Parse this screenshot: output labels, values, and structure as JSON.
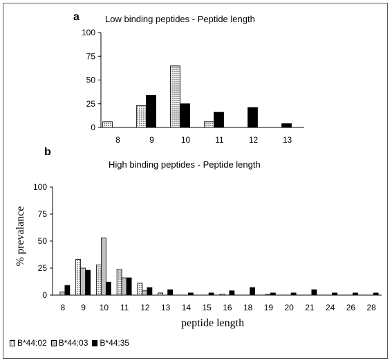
{
  "chart_data": [
    {
      "panel": "a",
      "type": "bar",
      "title": "Low binding peptides - Peptide length",
      "categories": [
        "8",
        "9",
        "10",
        "11",
        "12",
        "13"
      ],
      "ylim": [
        0,
        100
      ],
      "yticks": [
        0,
        25,
        50,
        75,
        100
      ],
      "series": [
        {
          "name": "B*44:02",
          "values": [
            6,
            23,
            65,
            6,
            0,
            0
          ]
        },
        {
          "name": "B*44:03",
          "values": [
            0,
            0,
            0,
            0,
            0,
            0
          ]
        },
        {
          "name": "B*44:35",
          "values": [
            0,
            34,
            25,
            16,
            21,
            4
          ]
        }
      ]
    },
    {
      "panel": "b",
      "type": "bar",
      "title": "High binding peptides - Peptide length",
      "ylabel": "% prevalance",
      "xlabel": "peptide length",
      "categories": [
        "8",
        "9",
        "10",
        "11",
        "12",
        "13",
        "14",
        "15",
        "16",
        "18",
        "19",
        "20",
        "21",
        "24",
        "26",
        "28"
      ],
      "ylim": [
        0,
        100
      ],
      "yticks": [
        0,
        25,
        50,
        75,
        100
      ],
      "series": [
        {
          "name": "B*44:02",
          "values": [
            0,
            33,
            28,
            24,
            11,
            2,
            0,
            0,
            1,
            0,
            0,
            0,
            0,
            0,
            0,
            0
          ]
        },
        {
          "name": "B*44:03",
          "values": [
            3,
            25,
            53,
            16,
            4,
            0,
            0,
            0,
            0,
            0,
            1,
            0,
            0,
            0,
            0,
            0
          ]
        },
        {
          "name": "B*44:35",
          "values": [
            9,
            23,
            12,
            16,
            7,
            5,
            2,
            2,
            4,
            7,
            2,
            2,
            5,
            2,
            2,
            2
          ]
        }
      ]
    }
  ],
  "legend": [
    {
      "name": "B*44:02",
      "pattern": "dotted"
    },
    {
      "name": "B*44:03",
      "color": "#c0c0c0"
    },
    {
      "name": "B*44:35",
      "color": "#000000"
    }
  ]
}
